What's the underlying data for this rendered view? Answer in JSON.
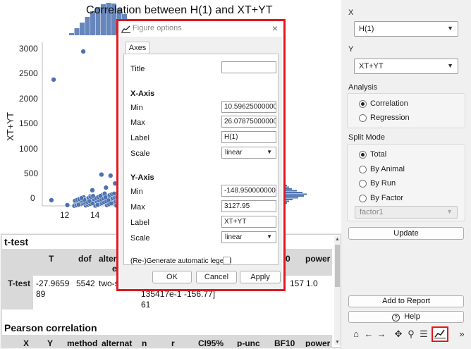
{
  "plot": {
    "title": "Correlation between H(1) and XT+YT",
    "ylabel": "XT+YT",
    "xticks": [
      "12",
      "14"
    ],
    "yticks": [
      "3000",
      "2500",
      "2000",
      "1500",
      "1000",
      "500",
      "0"
    ],
    "point_color": "#4c72b0"
  },
  "chart_data": {
    "type": "scatter",
    "title": "Correlation between H(1) and XT+YT",
    "xlabel": "",
    "ylabel": "XT+YT",
    "xlim": [
      10.6,
      26.1
    ],
    "ylim": [
      -149,
      3128
    ],
    "points": [
      {
        "x": 11.1,
        "y": 2420
      },
      {
        "x": 12.4,
        "y": 2960
      },
      {
        "x": 11.0,
        "y": 110
      },
      {
        "x": 13.2,
        "y": 600
      },
      {
        "x": 13.6,
        "y": 580
      },
      {
        "x": 14.1,
        "y": 840
      },
      {
        "x": 14.6,
        "y": 780
      },
      {
        "x": 13.8,
        "y": 430
      },
      {
        "x": 14.4,
        "y": 470
      },
      {
        "x": 12.8,
        "y": 300
      },
      {
        "x": 13.4,
        "y": 350
      },
      {
        "x": 14.8,
        "y": 420
      },
      {
        "x": 12.1,
        "y": 60
      },
      {
        "x": 12.4,
        "y": 120
      },
      {
        "x": 12.7,
        "y": 180
      },
      {
        "x": 13.0,
        "y": 90
      },
      {
        "x": 13.3,
        "y": 210
      },
      {
        "x": 13.6,
        "y": 150
      },
      {
        "x": 13.9,
        "y": 240
      },
      {
        "x": 14.2,
        "y": 190
      },
      {
        "x": 14.5,
        "y": 260
      },
      {
        "x": 14.8,
        "y": 170
      },
      {
        "x": 15.0,
        "y": 300
      },
      {
        "x": 13.1,
        "y": 30
      },
      {
        "x": 13.7,
        "y": 50
      },
      {
        "x": 14.3,
        "y": 80
      },
      {
        "x": 14.9,
        "y": 110
      },
      {
        "x": 12.5,
        "y": 20
      },
      {
        "x": 11.7,
        "y": 15
      },
      {
        "x": 15.1,
        "y": 40
      }
    ],
    "grid": false
  },
  "results": {
    "ttest": {
      "title": "t-test",
      "headers": [
        "T",
        "dof",
        "alter",
        "0",
        "power"
      ],
      "row_label": "T-test",
      "cells": [
        "-27.9659\n89",
        "5542",
        "two-s",
        "135417e-1\n61",
        "-156.77]",
        "157",
        "1.0"
      ]
    },
    "pearson": {
      "title": "Pearson correlation",
      "headers": [
        "X",
        "Y",
        "method",
        "alternat",
        "n",
        "r",
        "CI95%",
        "p-unc",
        "BF10",
        "power"
      ]
    }
  },
  "side": {
    "x_label": "X",
    "x_value": "H(1)",
    "y_label": "Y",
    "y_value": "XT+YT",
    "analysis_label": "Analysis",
    "analysis_options": [
      "Correlation",
      "Regression"
    ],
    "split_label": "Split Mode",
    "split_options": [
      "Total",
      "By Animal",
      "By Run",
      "By Factor"
    ],
    "factor_value": "factor1",
    "update": "Update",
    "add_report": "Add to Report",
    "help": "Help"
  },
  "toolbar": {
    "icons": [
      "home-icon",
      "back-icon",
      "forward-icon",
      "pan-icon",
      "zoom-icon",
      "configure-icon",
      "edit-axis-icon"
    ],
    "more": "»"
  },
  "dialog": {
    "title": "Figure options",
    "tab": "Axes",
    "title_label": "Title",
    "title_value": "",
    "xaxis_heading": "X-Axis",
    "yaxis_heading": "Y-Axis",
    "min_label": "Min",
    "max_label": "Max",
    "label_label": "Label",
    "scale_label": "Scale",
    "x_min": "10.59625000000000",
    "x_max": "26.07875000000000",
    "x_label_value": "H(1)",
    "x_scale": "linear",
    "y_min": "-148.950000000000",
    "y_max": "3127.95",
    "y_label_value": "XT+YT",
    "y_scale": "linear",
    "legend_label": "(Re-)Generate automatic legend",
    "ok": "OK",
    "cancel": "Cancel",
    "apply": "Apply"
  }
}
